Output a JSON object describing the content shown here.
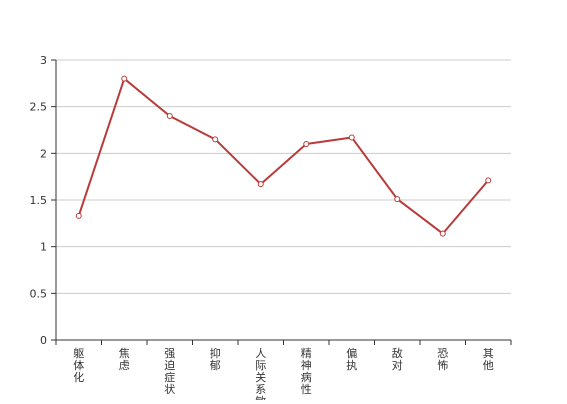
{
  "chart_data": {
    "type": "line",
    "categories": [
      "躯体化",
      "焦虑",
      "强迫症状",
      "抑郁",
      "人际关系敏感",
      "精神病性",
      "偏执",
      "敌对",
      "恐怖",
      "其他"
    ],
    "series": [
      {
        "values": [
          1.33,
          2.8,
          2.4,
          2.15,
          1.67,
          2.1,
          2.17,
          1.51,
          1.14,
          1.71
        ]
      }
    ],
    "ylim": [
      0,
      3
    ],
    "yticks": [
      "0",
      "0.5",
      "1",
      "1.5",
      "2",
      "2.5",
      "3"
    ],
    "ytick_values": [
      0,
      0.5,
      1,
      1.5,
      2,
      2.5,
      3
    ],
    "grid": true,
    "colors": {
      "line": "#b83b3b",
      "marker_fill": "#ffffff",
      "grid": "#cccccc",
      "axis": "#333333",
      "text": "#333333"
    },
    "marker": "hollow-circle"
  }
}
